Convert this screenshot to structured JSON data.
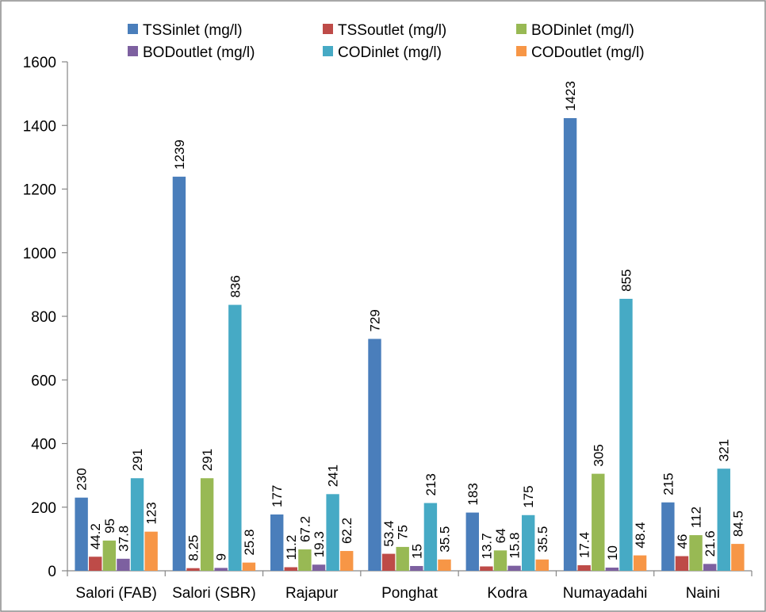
{
  "chart_data": {
    "type": "bar",
    "categories": [
      "Salori (FAB)",
      "Salori (SBR)",
      "Rajapur",
      "Ponghat",
      "Kodra",
      "Numayadahi",
      "Naini"
    ],
    "series": [
      {
        "name": "TSSinlet (mg/l)",
        "color": "#4a7ebb",
        "values": [
          230,
          1239,
          177,
          729,
          183,
          1423,
          215
        ],
        "labels": [
          "230",
          "1239",
          "177",
          "729",
          "183",
          "1423",
          "215"
        ]
      },
      {
        "name": "TSSoutlet (mg/l)",
        "color": "#be4b48",
        "values": [
          44.2,
          8.25,
          11.2,
          53.4,
          13.7,
          17.4,
          46
        ],
        "labels": [
          "44.2",
          "8.25",
          "11.2",
          "53.4",
          "13.7",
          "17.4",
          "46"
        ]
      },
      {
        "name": "BODinlet (mg/l)",
        "color": "#98b954",
        "values": [
          95,
          291,
          67.2,
          75,
          64,
          305,
          112
        ],
        "labels": [
          "95",
          "291",
          "67.2",
          "75",
          "64",
          "305",
          "112"
        ]
      },
      {
        "name": "BODoutlet (mg/l)",
        "color": "#7d60a0",
        "values": [
          37.8,
          9,
          19.3,
          15,
          15.8,
          10,
          21.6
        ],
        "labels": [
          "37.8",
          "9",
          "19.3",
          "15",
          "15.8",
          "10",
          "21.6"
        ]
      },
      {
        "name": "CODinlet (mg/l)",
        "color": "#46aac5",
        "values": [
          291,
          836,
          241,
          213,
          175,
          855,
          321
        ],
        "labels": [
          "291",
          "836",
          "241",
          "213",
          "175",
          "855",
          "321"
        ]
      },
      {
        "name": "CODoutlet (mg/l)",
        "color": "#f79646",
        "values": [
          123,
          25.8,
          62.2,
          35.5,
          35.5,
          48.4,
          84.5
        ],
        "labels": [
          "123",
          "25.8",
          "62.2",
          "35.5",
          "35.5",
          "48.4",
          "84.5"
        ]
      }
    ],
    "yticks": [
      "0",
      "200",
      "400",
      "600",
      "800",
      "1000",
      "1200",
      "1400",
      "1600"
    ],
    "ylim": [
      0,
      1600
    ],
    "grid": false,
    "legend_position": "top"
  }
}
